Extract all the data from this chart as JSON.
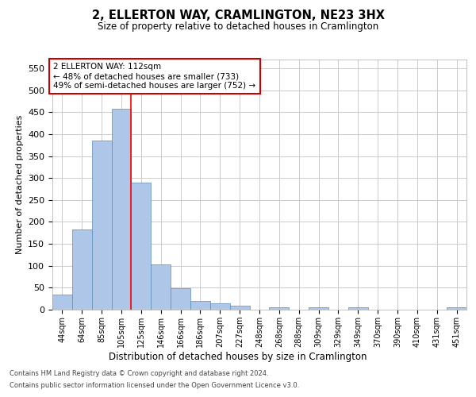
{
  "title": "2, ELLERTON WAY, CRAMLINGTON, NE23 3HX",
  "subtitle": "Size of property relative to detached houses in Cramlington",
  "xlabel": "Distribution of detached houses by size in Cramlington",
  "ylabel": "Number of detached properties",
  "footnote1": "Contains HM Land Registry data © Crown copyright and database right 2024.",
  "footnote2": "Contains public sector information licensed under the Open Government Licence v3.0.",
  "annotation_line1": "2 ELLERTON WAY: 112sqm",
  "annotation_line2": "← 48% of detached houses are smaller (733)",
  "annotation_line3": "49% of semi-detached houses are larger (752) →",
  "bar_labels": [
    "44sqm",
    "64sqm",
    "85sqm",
    "105sqm",
    "125sqm",
    "146sqm",
    "166sqm",
    "186sqm",
    "207sqm",
    "227sqm",
    "248sqm",
    "268sqm",
    "288sqm",
    "309sqm",
    "329sqm",
    "349sqm",
    "370sqm",
    "390sqm",
    "410sqm",
    "431sqm",
    "451sqm"
  ],
  "bar_values": [
    35,
    183,
    385,
    457,
    290,
    103,
    48,
    20,
    14,
    9,
    0,
    5,
    0,
    5,
    0,
    5,
    0,
    0,
    0,
    0,
    5
  ],
  "bar_color": "#aec6e8",
  "bar_edge_color": "#5b8db8",
  "red_line_x": 3.5,
  "annotation_box_color": "#ffffff",
  "annotation_box_edge": "#cc0000",
  "ylim": [
    0,
    570
  ],
  "yticks": [
    0,
    50,
    100,
    150,
    200,
    250,
    300,
    350,
    400,
    450,
    500,
    550
  ],
  "background_color": "#ffffff",
  "grid_color": "#cccccc"
}
